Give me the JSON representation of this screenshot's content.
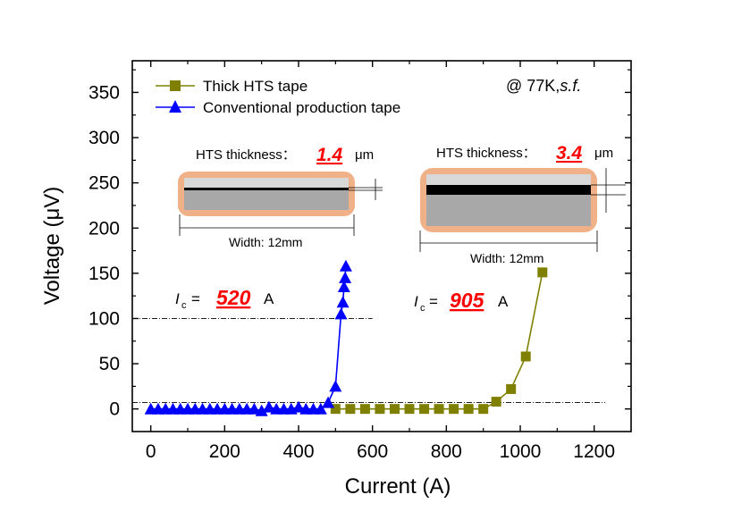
{
  "chart_data": {
    "type": "scatter",
    "xlabel": "Current (A)",
    "ylabel": "Voltage (μV)",
    "xlim": [
      -50,
      1300
    ],
    "ylim": [
      -25,
      385
    ],
    "x_ticks": [
      0,
      200,
      400,
      600,
      800,
      1000,
      1200
    ],
    "y_ticks": [
      0,
      50,
      100,
      150,
      200,
      250,
      300,
      350
    ],
    "x_tick_labels": [
      "0",
      "200",
      "400",
      "600",
      "800",
      "1000",
      "1200"
    ],
    "y_tick_labels": [
      "0",
      "50",
      "100",
      "150",
      "200",
      "250",
      "300",
      "350"
    ],
    "grid": false,
    "legend_position": "top-left",
    "condition_label": "@ 77K,",
    "condition_italic": "s.f.",
    "series": [
      {
        "name": "Thick HTS tape",
        "color": "#808000",
        "marker": "square",
        "x": [
          500,
          540,
          580,
          620,
          660,
          700,
          740,
          780,
          820,
          860,
          900,
          935,
          975,
          1015,
          1060
        ],
        "y": [
          0,
          0,
          0,
          0,
          0,
          0,
          0,
          0,
          0,
          0,
          0,
          8,
          22,
          58,
          151
        ]
      },
      {
        "name": "Conventional production tape",
        "color": "#0000ff",
        "marker": "triangle",
        "x": [
          0,
          20,
          40,
          60,
          80,
          100,
          120,
          140,
          160,
          180,
          200,
          220,
          240,
          260,
          280,
          300,
          320,
          340,
          360,
          380,
          400,
          420,
          440,
          460,
          480,
          500,
          515,
          520,
          523,
          526,
          528
        ],
        "y": [
          0,
          0,
          0,
          0,
          0,
          0,
          0,
          0,
          0,
          0,
          0,
          0,
          0,
          0,
          0,
          -2,
          2,
          0,
          0,
          0,
          2,
          0,
          0,
          0,
          7,
          25,
          105,
          118,
          135,
          145,
          158
        ]
      }
    ],
    "reference_lines": [
      {
        "y": 100,
        "x_from": -50,
        "x_to": 600
      },
      {
        "y": 7,
        "x_from": -50,
        "x_to": 1230
      }
    ],
    "annotations": {
      "ic_left": {
        "prefix": "I",
        "sub": "c",
        "eq": "=",
        "value": "520",
        "unit": "A"
      },
      "ic_right": {
        "prefix": "I",
        "sub": "c",
        "eq": "=",
        "value": "905",
        "unit": "A"
      },
      "tape_left": {
        "thickness_label": "HTS thickness：",
        "thickness_value": "1.4",
        "thickness_unit": "μm",
        "width_label": "Width: 12mm"
      },
      "tape_right": {
        "thickness_label": "HTS thickness：",
        "thickness_value": "3.4",
        "thickness_unit": "μm",
        "width_label": "Width: 12mm"
      }
    },
    "colors": {
      "axis": "#000000",
      "highlight": "#ff0000",
      "tape_border": "#f0b088",
      "substrate": "#a8a8a8",
      "buffer": "#d8d8d8",
      "hts_layer": "#000000"
    }
  }
}
